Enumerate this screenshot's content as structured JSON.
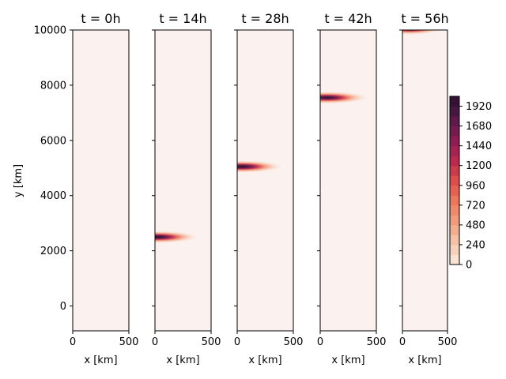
{
  "chart_data": {
    "type": "heatmap",
    "figure": "contourf panels over time",
    "panels": [
      {
        "title": "t = 0h",
        "time_h": 0,
        "xlabel": "x [km]",
        "blob": null
      },
      {
        "title": "t = 14h",
        "time_h": 14,
        "xlabel": "x [km]",
        "blob": {
          "x_center": 20,
          "y_center": 2500,
          "peak": 2000,
          "sx": 140,
          "sy": 130
        }
      },
      {
        "title": "t = 28h",
        "time_h": 28,
        "xlabel": "x [km]",
        "blob": {
          "x_center": 40,
          "y_center": 5050,
          "peak": 2000,
          "sx": 140,
          "sy": 130
        }
      },
      {
        "title": "t = 42h",
        "time_h": 42,
        "xlabel": "x [km]",
        "blob": {
          "x_center": 60,
          "y_center": 7550,
          "peak": 1950,
          "sx": 140,
          "sy": 130
        }
      },
      {
        "title": "t = 56h",
        "time_h": 56,
        "xlabel": "x [km]",
        "blob": {
          "x_center": 80,
          "y_center": 10050,
          "peak": 1900,
          "sx": 140,
          "sy": 130
        }
      }
    ],
    "ylabel": "y [km]",
    "xlim": [
      0,
      500
    ],
    "ylim": [
      -900,
      10000
    ],
    "x_ticks": [
      "0",
      "500"
    ],
    "y_ticks": [
      "0",
      "2000",
      "4000",
      "6000",
      "8000",
      "10000"
    ],
    "colorbar": {
      "ticks": [
        "0",
        "240",
        "480",
        "720",
        "960",
        "1200",
        "1440",
        "1680",
        "1920"
      ],
      "range": [
        0,
        2040
      ],
      "colormap": "rocket_r"
    },
    "background_color": "#fbf1ef"
  }
}
